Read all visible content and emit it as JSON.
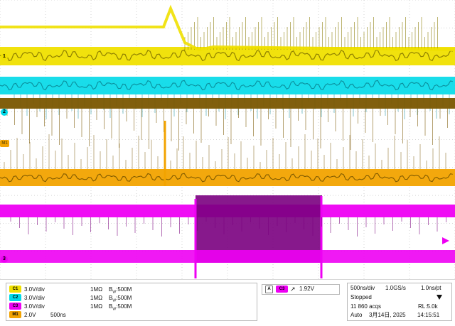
{
  "colors": {
    "background": "#ffffff",
    "grid": "#c9c9c9",
    "yellow": "#f0e000",
    "yellow_dark": "#8a7b00",
    "cyan": "#00d9e8",
    "cyan_dark": "#0b8a98",
    "orange": "#f2a300",
    "orange_dark": "#7a5600",
    "magenta": "#ee00f3",
    "magenta_dark": "#7a007f",
    "accent": "#ff9900"
  },
  "plot": {
    "channel_markers": [
      "1",
      "2",
      "M1",
      "3"
    ]
  },
  "status": {
    "channels": [
      {
        "id": "C1",
        "scale": "3.0V/div",
        "coupling": "1MΩ",
        "bw": "500M"
      },
      {
        "id": "C2",
        "scale": "3.0V/div",
        "coupling": "1MΩ",
        "bw": "500M"
      },
      {
        "id": "C3",
        "scale": "3.0V/div",
        "coupling": "1MΩ",
        "bw": "500M"
      }
    ],
    "math": {
      "id": "M1",
      "scale": "2.0V",
      "time": "500ns"
    },
    "trigger": {
      "source": "C3",
      "level": "1.92V"
    },
    "timebase": {
      "time_div": "500ns/div",
      "sample_rate": "1.0GS/s",
      "pts": "1.0ns/pt"
    },
    "state": "Stopped",
    "acqs": "11 860 acqs",
    "record": "RL:5.0k",
    "mode": "Auto",
    "date": "3月14日, 2025",
    "time": "14:15:51",
    "bw_label_prefix": "B",
    "bw_label_sub": "W",
    "bw_sep": ":"
  }
}
